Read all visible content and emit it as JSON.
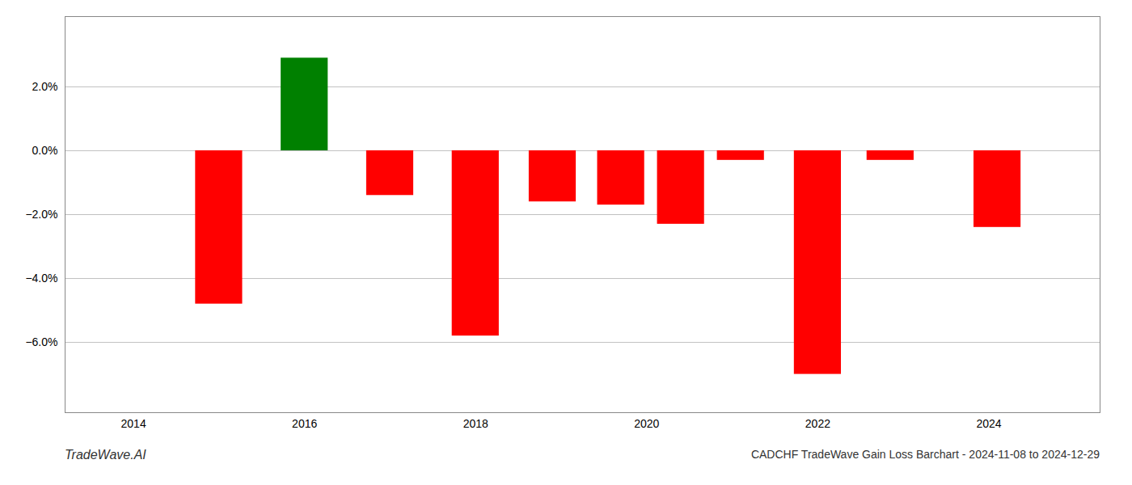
{
  "chart_data": {
    "type": "bar",
    "title": "CADCHF TradeWave Gain Loss Barchart - 2024-11-08 to 2024-12-29",
    "annotations": [
      "TradeWave.AI"
    ],
    "x": [
      2015,
      2016,
      2017,
      2018,
      2018.9,
      2019.7,
      2020.4,
      2021.1,
      2022.0,
      2022.85,
      2024.1
    ],
    "values": [
      -0.048,
      0.029,
      -0.014,
      -0.058,
      -0.016,
      -0.017,
      -0.023,
      -0.003,
      -0.07,
      -0.003,
      -0.024
    ],
    "colors": [
      "#ff0000",
      "#008000",
      "#ff0000",
      "#ff0000",
      "#ff0000",
      "#ff0000",
      "#ff0000",
      "#ff0000",
      "#ff0000",
      "#ff0000",
      "#ff0000"
    ],
    "xlim": [
      2013.2,
      2025.3
    ],
    "xticks": [
      2014,
      2016,
      2018,
      2020,
      2022,
      2024
    ],
    "ylim": [
      -0.082,
      0.042
    ],
    "yticks": [
      {
        "value": -0.06,
        "label": "−6.0%"
      },
      {
        "value": -0.04,
        "label": "−4.0%"
      },
      {
        "value": -0.02,
        "label": "−2.0%"
      },
      {
        "value": 0.0,
        "label": "0.0%"
      },
      {
        "value": 0.02,
        "label": "2.0%"
      }
    ],
    "grid": true
  }
}
